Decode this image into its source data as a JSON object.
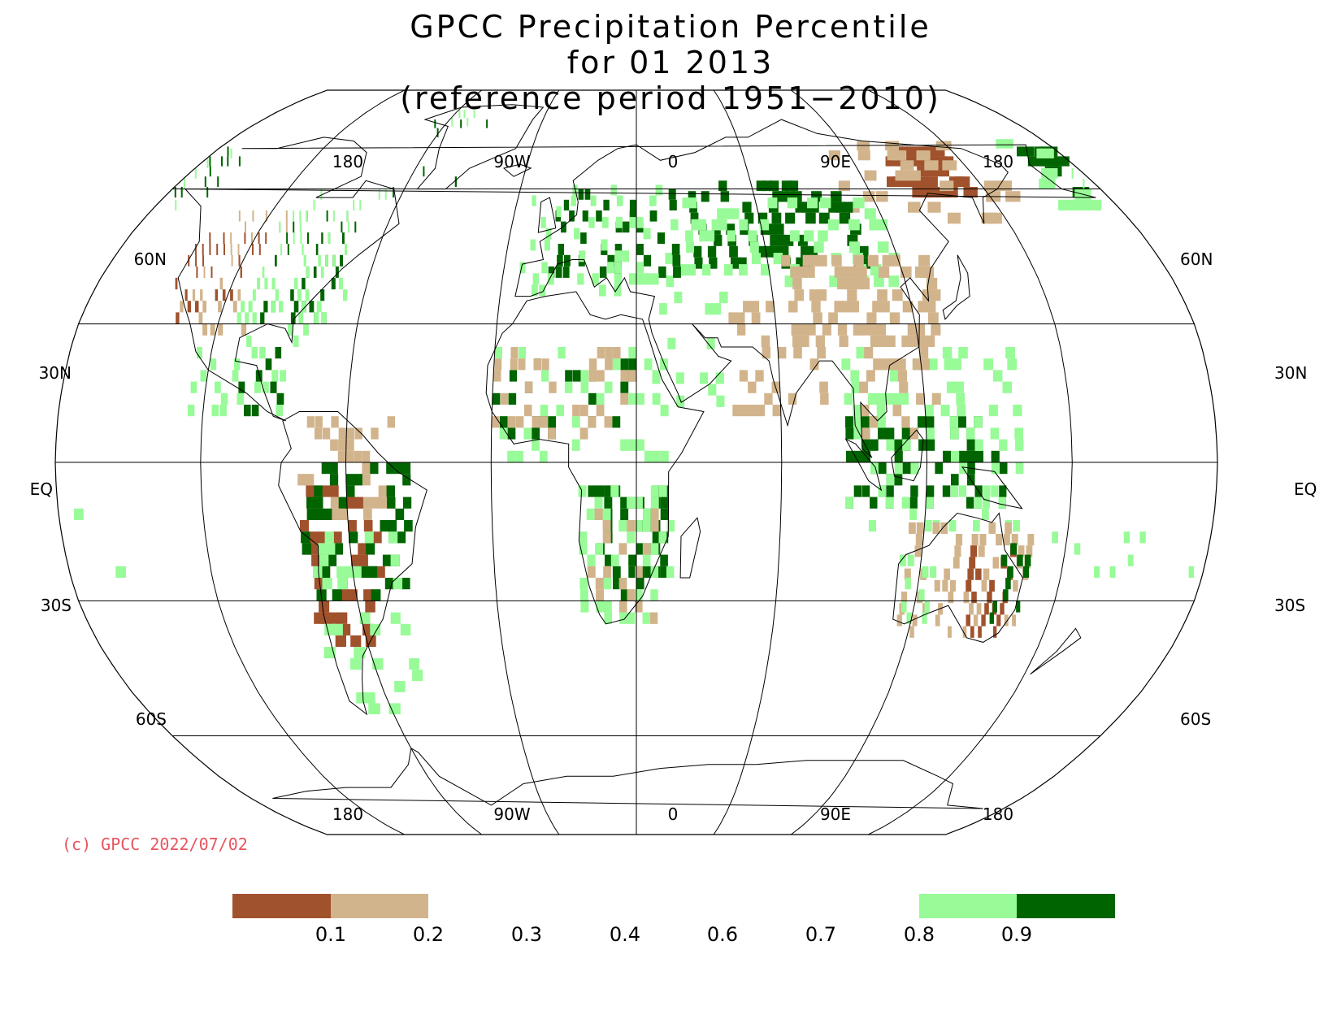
{
  "title": {
    "line1": "GPCC Precipitation Percentile",
    "line2": "for 01 2013",
    "line3": "(reference period 1951−2010)"
  },
  "top_lon_labels": [
    "180",
    "90W",
    "0",
    "90E",
    "180"
  ],
  "bottom_lon_labels": [
    "180",
    "90W",
    "0",
    "90E",
    "180"
  ],
  "lat_labels": [
    "60N",
    "30N",
    "EQ",
    "30S",
    "60S"
  ],
  "copyright": "(c) GPCC 2022/07/02",
  "legend": {
    "ticks": [
      "0.1",
      "0.2",
      "0.3",
      "0.4",
      "0.6",
      "0.7",
      "0.8",
      "0.9"
    ],
    "colors": {
      "below_0_1": "#a0522d",
      "0_1_to_0_2": "#d2b48c",
      "0_8_to_0_9": "#98fb98",
      "above_0_9": "#006400"
    }
  },
  "map_data": {
    "projection": "Robinson",
    "central_meridian": 30,
    "graticule_lon_step": 45,
    "graticule_lats": [
      60,
      30,
      0,
      -30,
      -60
    ],
    "notable_anomalies": [
      {
        "region": "Eastern Siberia",
        "class": "below_0_1"
      },
      {
        "region": "Central Russia / Kazakhstan",
        "class": "above_0_9"
      },
      {
        "region": "Europe",
        "class": "above_0_9"
      },
      {
        "region": "Eastern North America",
        "class": "above_0_9"
      },
      {
        "region": "Western United States",
        "class": "below_0_1"
      },
      {
        "region": "Southern South America",
        "class": "below_0_1"
      },
      {
        "region": "Southeastern Africa",
        "class": "above_0_9"
      },
      {
        "region": "Eastern Australia",
        "class": "below_0_1"
      },
      {
        "region": "Indonesia",
        "class": "above_0_9"
      },
      {
        "region": "China",
        "class": "0_1_to_0_2"
      }
    ]
  }
}
